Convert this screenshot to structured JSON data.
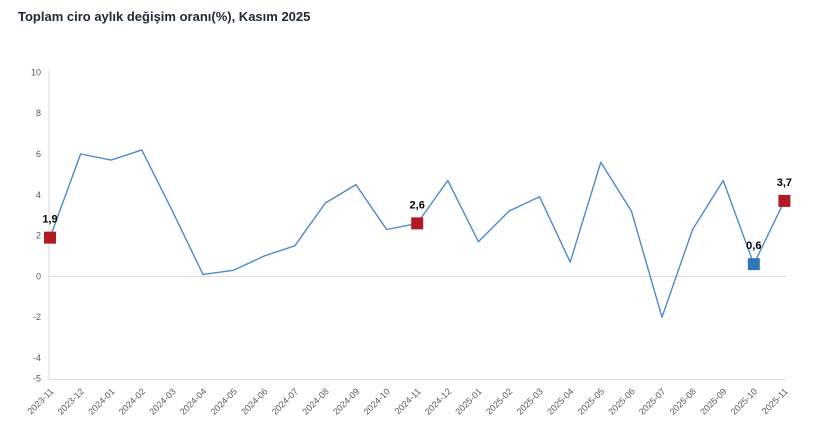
{
  "chart_data": {
    "type": "line",
    "title": "Toplam ciro aylık değişim oranı(%), Kasım 2025",
    "xlabel": "",
    "ylabel": "",
    "categories": [
      "2023-11",
      "2023-12",
      "2024-01",
      "2024-02",
      "2024-03",
      "2024-04",
      "2024-05",
      "2024-06",
      "2024-07",
      "2024-08",
      "2024-09",
      "2024-10",
      "2024-11",
      "2024-12",
      "2025-01",
      "2025-02",
      "2025-03",
      "2025-04",
      "2025-05",
      "2025-06",
      "2025-07",
      "2025-08",
      "2025-09",
      "2025-10",
      "2025-11"
    ],
    "values": [
      1.9,
      6.0,
      5.7,
      6.2,
      3.2,
      0.1,
      0.3,
      1.0,
      1.5,
      3.6,
      4.5,
      2.3,
      2.6,
      4.7,
      1.7,
      3.2,
      3.9,
      0.7,
      5.6,
      3.2,
      -2.0,
      2.3,
      4.7,
      0.6,
      3.7
    ],
    "ylim": [
      -5,
      10
    ],
    "yticks": [
      10,
      8,
      6,
      4,
      2,
      0,
      -2,
      -4,
      -5
    ],
    "grid": "zero-line-only",
    "legend_position": "none",
    "line_color": "#4e8acb",
    "axis_color": "#d9d9d9",
    "tick_label_color": "#595959",
    "data_label_color": "#000000",
    "title_color": "#202a36",
    "highlighted_points": [
      {
        "category": "2023-11",
        "index": 0,
        "label": "1,9",
        "marker": "square",
        "color": "#b11a22"
      },
      {
        "category": "2024-11",
        "index": 12,
        "label": "2,6",
        "marker": "square",
        "color": "#b11a22"
      },
      {
        "category": "2025-10",
        "index": 23,
        "label": "0,6",
        "marker": "square",
        "color": "#2e76b5"
      },
      {
        "category": "2025-11",
        "index": 24,
        "label": "3,7",
        "marker": "square",
        "color": "#b11a22"
      }
    ]
  }
}
